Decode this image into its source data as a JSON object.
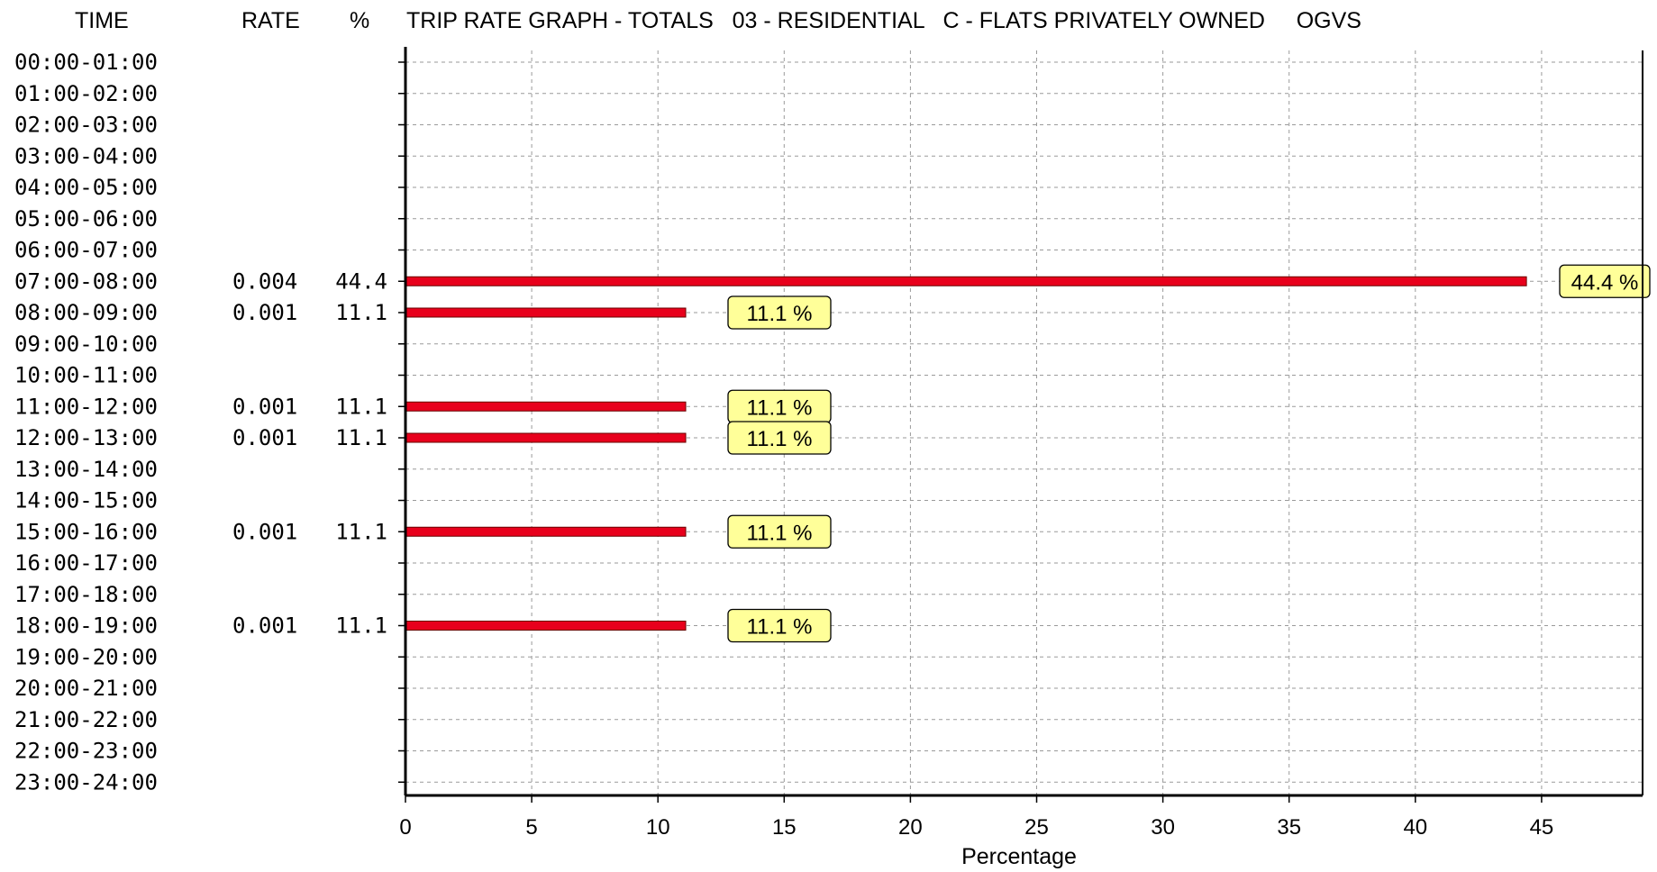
{
  "header": {
    "time": "TIME",
    "rate": "RATE",
    "percent": "%",
    "title": "TRIP RATE GRAPH - TOTALS   03 - RESIDENTIAL   C - FLATS PRIVATELY OWNED     OGVS"
  },
  "chart_data": {
    "type": "bar",
    "orientation": "horizontal",
    "title": "TRIP RATE GRAPH - TOTALS   03 - RESIDENTIAL   C - FLATS PRIVATELY OWNED     OGVS",
    "xlabel": "Percentage",
    "xlim": [
      0,
      49
    ],
    "x_ticks": [
      0,
      5,
      10,
      15,
      20,
      25,
      30,
      35,
      40,
      45
    ],
    "grid": true,
    "colors": {
      "bar": "#e8001c",
      "label_bg": "#ffff99"
    },
    "rows": [
      {
        "time": "00:00-01:00",
        "rate": "",
        "percent": "",
        "value": 0
      },
      {
        "time": "01:00-02:00",
        "rate": "",
        "percent": "",
        "value": 0
      },
      {
        "time": "02:00-03:00",
        "rate": "",
        "percent": "",
        "value": 0
      },
      {
        "time": "03:00-04:00",
        "rate": "",
        "percent": "",
        "value": 0
      },
      {
        "time": "04:00-05:00",
        "rate": "",
        "percent": "",
        "value": 0
      },
      {
        "time": "05:00-06:00",
        "rate": "",
        "percent": "",
        "value": 0
      },
      {
        "time": "06:00-07:00",
        "rate": "",
        "percent": "",
        "value": 0
      },
      {
        "time": "07:00-08:00",
        "rate": "0.004",
        "percent": "44.4",
        "value": 44.4,
        "label": "44.4 %"
      },
      {
        "time": "08:00-09:00",
        "rate": "0.001",
        "percent": "11.1",
        "value": 11.1,
        "label": "11.1 %"
      },
      {
        "time": "09:00-10:00",
        "rate": "",
        "percent": "",
        "value": 0
      },
      {
        "time": "10:00-11:00",
        "rate": "",
        "percent": "",
        "value": 0
      },
      {
        "time": "11:00-12:00",
        "rate": "0.001",
        "percent": "11.1",
        "value": 11.1,
        "label": "11.1 %"
      },
      {
        "time": "12:00-13:00",
        "rate": "0.001",
        "percent": "11.1",
        "value": 11.1,
        "label": "11.1 %"
      },
      {
        "time": "13:00-14:00",
        "rate": "",
        "percent": "",
        "value": 0
      },
      {
        "time": "14:00-15:00",
        "rate": "",
        "percent": "",
        "value": 0
      },
      {
        "time": "15:00-16:00",
        "rate": "0.001",
        "percent": "11.1",
        "value": 11.1,
        "label": "11.1 %"
      },
      {
        "time": "16:00-17:00",
        "rate": "",
        "percent": "",
        "value": 0
      },
      {
        "time": "17:00-18:00",
        "rate": "",
        "percent": "",
        "value": 0
      },
      {
        "time": "18:00-19:00",
        "rate": "0.001",
        "percent": "11.1",
        "value": 11.1,
        "label": "11.1 %"
      },
      {
        "time": "19:00-20:00",
        "rate": "",
        "percent": "",
        "value": 0
      },
      {
        "time": "20:00-21:00",
        "rate": "",
        "percent": "",
        "value": 0
      },
      {
        "time": "21:00-22:00",
        "rate": "",
        "percent": "",
        "value": 0
      },
      {
        "time": "22:00-23:00",
        "rate": "",
        "percent": "",
        "value": 0
      },
      {
        "time": "23:00-24:00",
        "rate": "",
        "percent": "",
        "value": 0
      }
    ]
  }
}
